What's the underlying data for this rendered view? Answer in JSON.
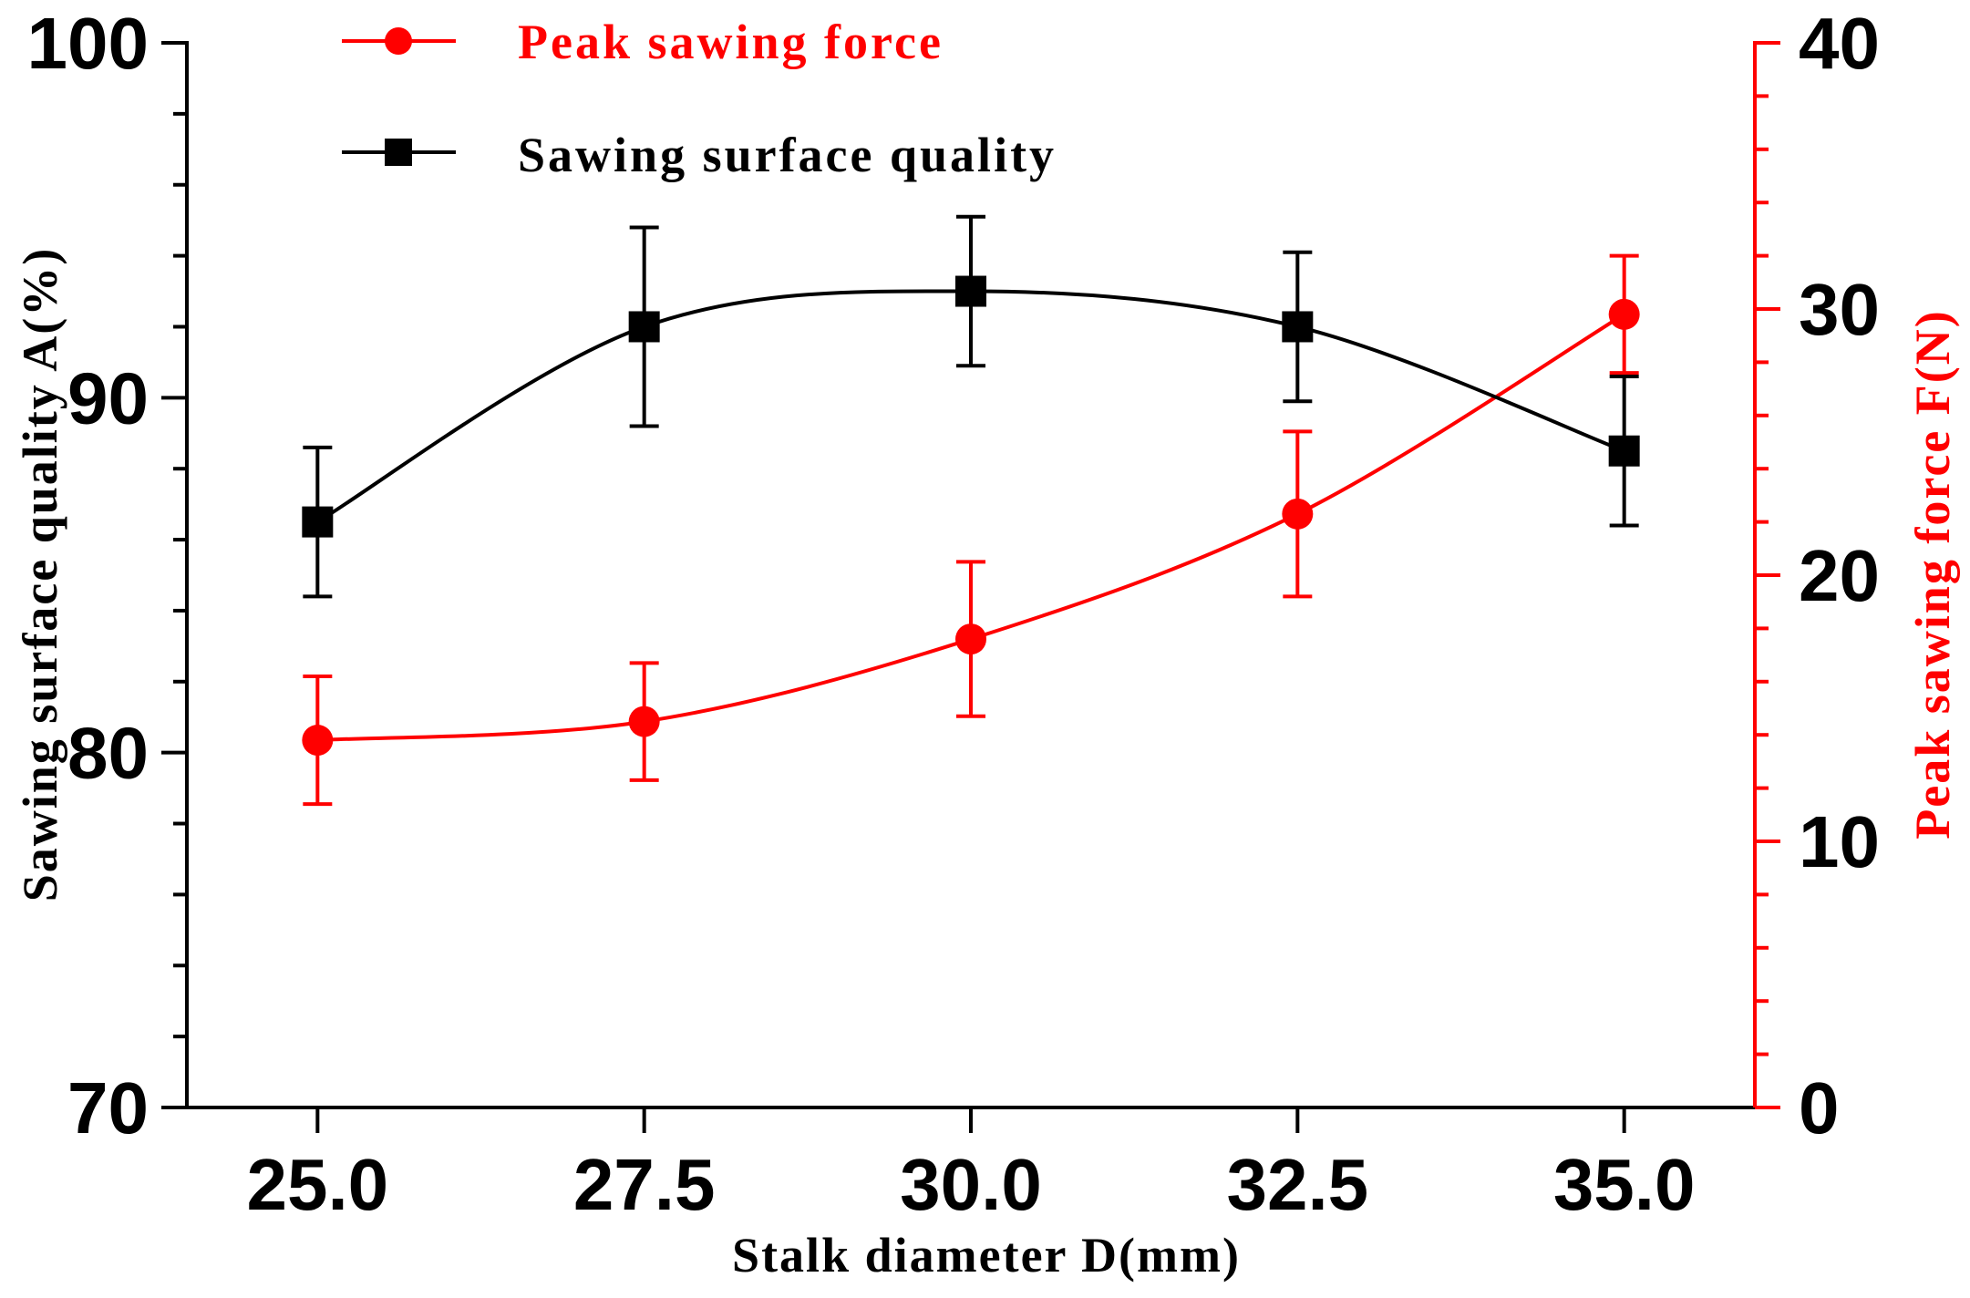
{
  "chart_data": {
    "type": "line",
    "x": [
      25.0,
      27.5,
      30.0,
      32.5,
      35.0
    ],
    "xlabel": "Stalk diameter D(mm)",
    "xticks": [
      "25.0",
      "27.5",
      "30.0",
      "32.5",
      "35.0"
    ],
    "xlim": [
      24.0,
      36.0
    ],
    "ylabel_left": "Sawing surface quality A(%)",
    "ylim_left": [
      70,
      100
    ],
    "yticks_left": [
      "70",
      "80",
      "90",
      "100"
    ],
    "ylabel_right": "Peak sawing force F(N)",
    "ylim_right": [
      0,
      40
    ],
    "yticks_right": [
      "0",
      "10",
      "20",
      "30",
      "40"
    ],
    "legend_position": "top-left",
    "series": [
      {
        "name": "Peak sawing force",
        "axis": "right",
        "marker": "circle",
        "color": "#ff0000",
        "values": [
          13.8,
          14.5,
          17.6,
          22.3,
          29.8
        ],
        "errors": [
          2.4,
          2.2,
          2.9,
          3.1,
          2.2
        ]
      },
      {
        "name": "Sawing surface quality",
        "axis": "left",
        "marker": "square",
        "color": "#000000",
        "values": [
          86.5,
          92.0,
          93.0,
          92.0,
          88.5
        ],
        "errors": [
          2.1,
          2.8,
          2.1,
          2.1,
          2.1
        ]
      }
    ]
  }
}
